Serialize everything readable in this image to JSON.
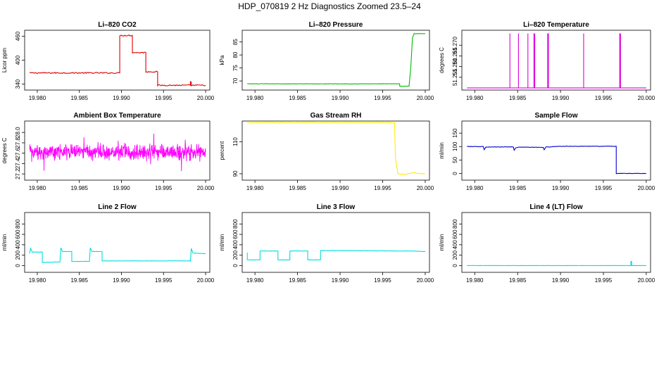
{
  "figure": {
    "title": "HDP_070819  2 Hz Diagnostics Zoomed 23.5–24"
  },
  "chart_data": [
    {
      "id": "co2",
      "type": "line",
      "title": "Li–820 CO2",
      "xlabel": "",
      "ylabel": "Licor ppm",
      "color": "#dd0000",
      "xlim": [
        19.9785,
        20.0005
      ],
      "ylim": [
        325,
        475
      ],
      "xticks": [
        19.98,
        19.985,
        19.99,
        19.995,
        20.0
      ],
      "xtick_labels": [
        "19.980",
        "19.985",
        "19.990",
        "19.995",
        "20.000"
      ],
      "yticks": [
        340,
        400,
        460
      ],
      "ytick_labels": [
        "340",
        "400",
        "460"
      ],
      "noise": 1.5,
      "x": [
        19.9791,
        19.9898,
        19.9898,
        19.9913,
        19.9913,
        19.9929,
        19.9929,
        19.9943,
        19.9943,
        19.9982,
        19.9982,
        19.9983,
        19.9983,
        20.0
      ],
      "y": [
        368,
        368,
        462,
        462,
        419,
        419,
        371,
        371,
        337,
        337,
        345,
        345,
        337,
        337
      ]
    },
    {
      "id": "pressure",
      "type": "line",
      "title": "Li–820 Pressure",
      "xlabel": "",
      "ylabel": "kPa",
      "color": "#00bb00",
      "xlim": [
        19.9785,
        20.0005
      ],
      "ylim": [
        66.5,
        89.5
      ],
      "xticks": [
        19.98,
        19.985,
        19.99,
        19.995,
        20.0
      ],
      "xtick_labels": [
        "19.980",
        "19.985",
        "19.990",
        "19.995",
        "20.000"
      ],
      "yticks": [
        70,
        75,
        80,
        85
      ],
      "ytick_labels": [
        "70",
        "75",
        "80",
        "85"
      ],
      "noise": 0.08,
      "x": [
        19.9791,
        19.997,
        19.997,
        19.9981,
        19.9983,
        19.9985,
        19.9987,
        20.0
      ],
      "y": [
        68.9,
        68.9,
        68.0,
        68.0,
        75.0,
        86.5,
        88.2,
        88.2
      ]
    },
    {
      "id": "temperature",
      "type": "line",
      "title": "Li–820 Temperature",
      "xlabel": "",
      "ylabel": "degrees C",
      "color": "#dd00dd",
      "xlim": [
        19.9785,
        20.0005
      ],
      "ylim": [
        51.249,
        51.277
      ],
      "xticks": [
        19.98,
        19.985,
        19.99,
        19.995,
        20.0
      ],
      "xtick_labels": [
        "19.980",
        "19.985",
        "19.990",
        "19.995",
        "20.000"
      ],
      "yticks": [
        51.255,
        51.26,
        51.265,
        51.27
      ],
      "ytick_labels": [
        "51.255",
        "51.260",
        "51.265",
        "51.270"
      ],
      "baseline": 51.25,
      "spike_value": 51.2755,
      "spikes": [
        19.9841,
        19.9851,
        19.9862,
        19.9869,
        19.987,
        19.9885,
        19.9886,
        19.9927,
        19.9969,
        19.997
      ]
    },
    {
      "id": "ambient",
      "type": "line",
      "title": "Ambient Box Temperature",
      "xlabel": "",
      "ylabel": "degrees C",
      "color": "#ff00ff",
      "xlim": [
        19.9785,
        20.0005
      ],
      "ylim": [
        27.08,
        28.22
      ],
      "xticks": [
        19.98,
        19.985,
        19.99,
        19.995,
        20.0
      ],
      "xtick_labels": [
        "19.980",
        "19.985",
        "19.990",
        "19.995",
        "20.000"
      ],
      "yticks": [
        27.2,
        27.4,
        27.6,
        27.8,
        28.0
      ],
      "ytick_labels": [
        "27.2",
        "27.4",
        "27.6",
        "27.8",
        "28.0"
      ],
      "mean": 27.62,
      "spread": 0.22,
      "x_start": 19.9791,
      "x_end": 20.0
    },
    {
      "id": "rh",
      "type": "line",
      "title": "Gas Stream RH",
      "xlabel": "",
      "ylabel": "percent",
      "color": "#ffee00",
      "xlim": [
        19.9785,
        20.0005
      ],
      "ylim": [
        86,
        123
      ],
      "xticks": [
        19.98,
        19.985,
        19.99,
        19.995,
        20.0
      ],
      "xtick_labels": [
        "19.980",
        "19.985",
        "19.990",
        "19.995",
        "20.000"
      ],
      "yticks": [
        90,
        110
      ],
      "ytick_labels": [
        "90",
        "110"
      ],
      "noise": 0.25,
      "x": [
        19.9791,
        19.9964,
        19.9965,
        19.9968,
        19.9975,
        19.9985,
        20.0
      ],
      "y": [
        122,
        122,
        100,
        90,
        89.5,
        90.5,
        90.0
      ]
    },
    {
      "id": "sample_flow",
      "type": "line",
      "title": "Sample Flow",
      "xlabel": "",
      "ylabel": "ml/min",
      "color": "#0000cc",
      "xlim": [
        19.9785,
        20.0005
      ],
      "ylim": [
        -25,
        195
      ],
      "xticks": [
        19.98,
        19.985,
        19.99,
        19.995,
        20.0
      ],
      "xtick_labels": [
        "19.980",
        "19.985",
        "19.990",
        "19.995",
        "20.000"
      ],
      "yticks": [
        0,
        50,
        100,
        150
      ],
      "ytick_labels": [
        "0",
        "50",
        "100",
        "150"
      ],
      "noise": 0.8,
      "x": [
        19.9791,
        19.981,
        19.9811,
        19.9813,
        19.9845,
        19.9846,
        19.9848,
        19.9852,
        19.988,
        19.9881,
        19.9883,
        19.99,
        19.9965,
        19.9965,
        20.0
      ],
      "y": [
        100,
        100,
        88,
        98,
        99,
        87,
        95,
        98,
        97,
        89,
        98,
        101,
        101,
        0,
        0
      ]
    },
    {
      "id": "line2",
      "type": "line",
      "title": "Line 2 Flow",
      "xlabel": "",
      "ylabel": "ml/min",
      "color": "#00dddd",
      "xlim": [
        19.9785,
        20.0005
      ],
      "ylim": [
        -130,
        1020
      ],
      "xticks": [
        19.98,
        19.985,
        19.99,
        19.995,
        20.0
      ],
      "xtick_labels": [
        "19.980",
        "19.985",
        "19.990",
        "19.995",
        "20.000"
      ],
      "yticks": [
        0,
        200,
        400,
        600,
        800
      ],
      "ytick_labels": [
        "0",
        "200",
        "400",
        "600",
        "800"
      ],
      "noise": 3,
      "x": [
        19.9791,
        19.9792,
        19.9794,
        19.9806,
        19.9806,
        19.9827,
        19.9828,
        19.983,
        19.9841,
        19.9841,
        19.9862,
        19.9863,
        19.9865,
        19.9877,
        19.9877,
        19.9982,
        19.9983,
        19.9985,
        20.0
      ],
      "y": [
        230,
        340,
        260,
        260,
        60,
        70,
        340,
        270,
        270,
        80,
        80,
        340,
        270,
        270,
        90,
        90,
        330,
        240,
        230
      ]
    },
    {
      "id": "line3",
      "type": "line",
      "title": "Line 3 Flow",
      "xlabel": "",
      "ylabel": "ml/min",
      "color": "#00dddd",
      "xlim": [
        19.9785,
        20.0005
      ],
      "ylim": [
        -130,
        1020
      ],
      "xticks": [
        19.98,
        19.985,
        19.99,
        19.995,
        20.0
      ],
      "xtick_labels": [
        "19.980",
        "19.985",
        "19.990",
        "19.995",
        "20.000"
      ],
      "yticks": [
        0,
        200,
        400,
        600,
        800
      ],
      "ytick_labels": [
        "0",
        "200",
        "400",
        "600",
        "800"
      ],
      "noise": 3,
      "x": [
        19.9791,
        19.9791,
        19.9806,
        19.9806,
        19.9827,
        19.9827,
        19.9841,
        19.9841,
        19.9862,
        19.9862,
        19.9877,
        19.9877,
        19.9982,
        20.0
      ],
      "y": [
        250,
        110,
        110,
        280,
        280,
        110,
        110,
        280,
        280,
        110,
        110,
        290,
        280,
        270
      ]
    },
    {
      "id": "line4",
      "type": "line",
      "title": "Line 4 (LT) Flow",
      "xlabel": "",
      "ylabel": "ml/min",
      "color": "#00dddd",
      "xlim": [
        19.9785,
        20.0005
      ],
      "ylim": [
        -130,
        1020
      ],
      "xticks": [
        19.98,
        19.985,
        19.99,
        19.995,
        20.0
      ],
      "xtick_labels": [
        "19.980",
        "19.985",
        "19.990",
        "19.995",
        "20.000"
      ],
      "yticks": [
        0,
        200,
        400,
        600,
        800
      ],
      "ytick_labels": [
        "0",
        "200",
        "400",
        "600",
        "800"
      ],
      "noise": 1,
      "x": [
        19.9791,
        19.9982,
        19.9982,
        19.9983,
        19.9983,
        20.0
      ],
      "y": [
        0,
        0,
        80,
        80,
        0,
        0
      ]
    }
  ]
}
